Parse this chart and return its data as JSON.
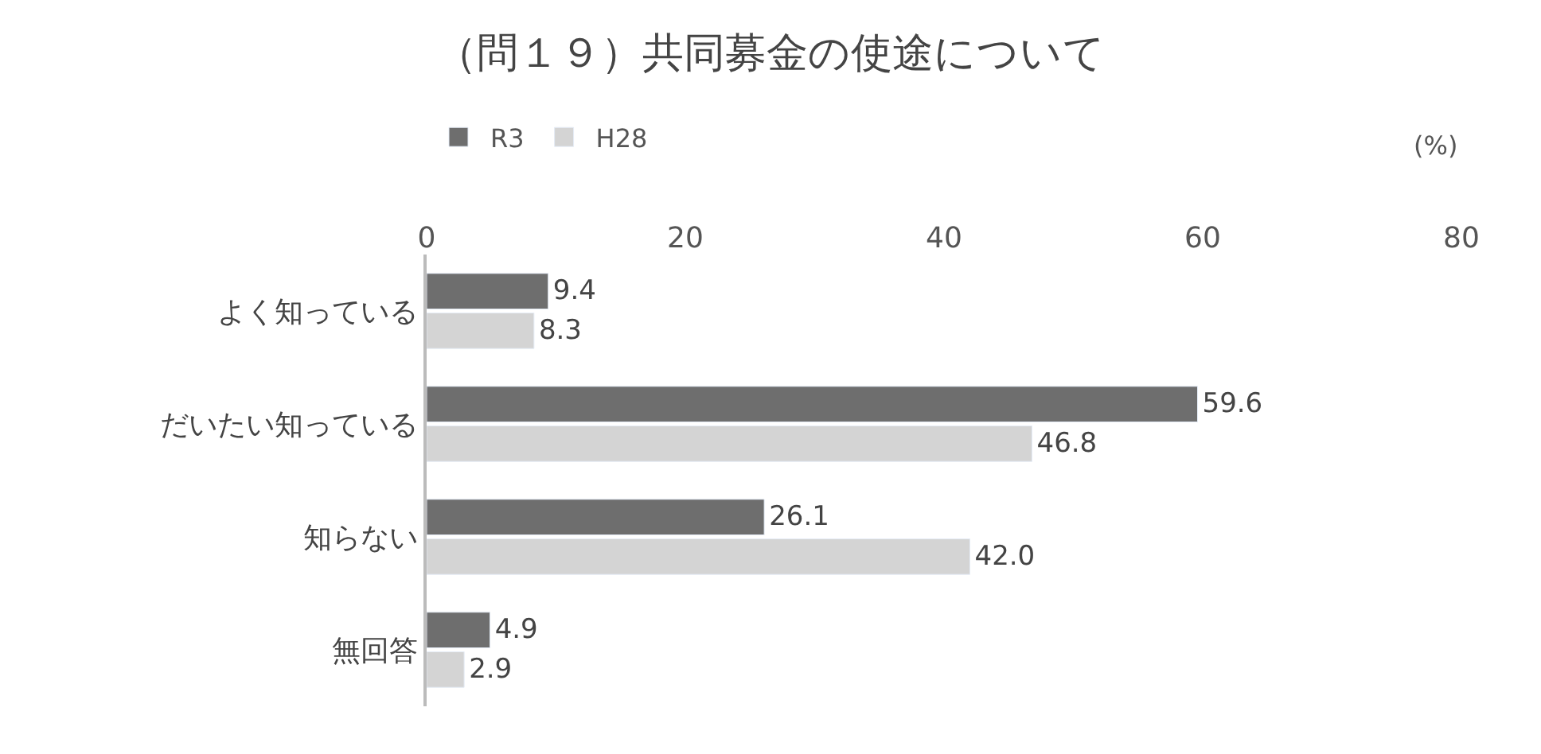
{
  "chart_data": {
    "type": "bar",
    "orientation": "horizontal",
    "title": "（問１９）共同募金の使途について",
    "categories": [
      "よく知っている",
      "だいたい知っている",
      "知らない",
      "無回答"
    ],
    "series": [
      {
        "name": "R3",
        "color": "#6e6e6e",
        "values": [
          9.4,
          59.6,
          26.1,
          4.9
        ],
        "value_labels": [
          "9.4",
          "59.6",
          "26.1",
          "4.9"
        ]
      },
      {
        "name": "H28",
        "color": "#d4d4d4",
        "values": [
          8.3,
          46.8,
          42.0,
          2.9
        ],
        "value_labels": [
          "8.3",
          "46.8",
          "42.0",
          "2.9"
        ]
      }
    ],
    "xlim": [
      0,
      80
    ],
    "xticks": [
      0,
      20,
      40,
      60,
      80
    ],
    "legend": "top left",
    "annotations": [
      "(%)"
    ]
  }
}
